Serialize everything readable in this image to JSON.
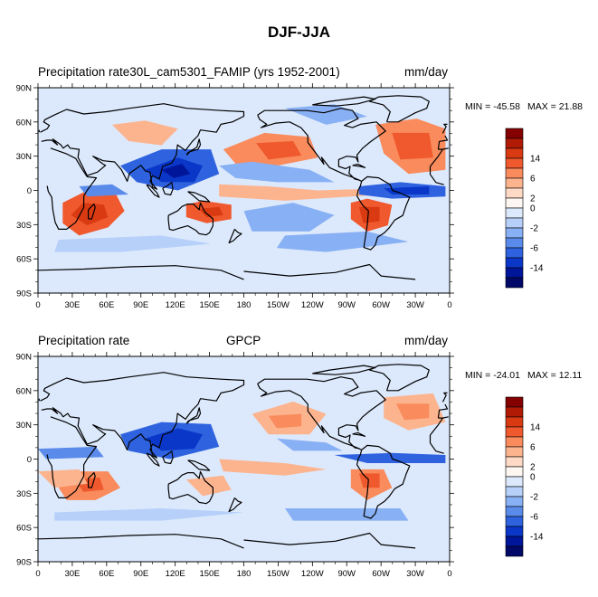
{
  "title": "DJF-JJA",
  "panels": [
    {
      "left_title": "Precipitation rate30L_cam5301_FAMIP (yrs 1952-2001)",
      "center_title": "",
      "units": "mm/day",
      "min_label": "MIN = -45.58",
      "max_label": "MAX =  21.88"
    },
    {
      "left_title": "Precipitation rate",
      "center_title": "GPCP",
      "units": "mm/day",
      "min_label": "MIN = -24.01",
      "max_label": "MAX =  12.11"
    }
  ],
  "lat_labels": [
    "90N",
    "60N",
    "30N",
    "0",
    "30S",
    "60S",
    "90S"
  ],
  "lon_labels": [
    "0",
    "30E",
    "60E",
    "90E",
    "120E",
    "150E",
    "180",
    "150W",
    "120W",
    "90W",
    "60W",
    "30W",
    "0"
  ],
  "colorbar_labels": [
    "14",
    "6",
    "2",
    "0",
    "-2",
    "-6",
    "-14"
  ],
  "colorbar_colors": [
    "#850000",
    "#b11a05",
    "#d93a12",
    "#f0592e",
    "#f98b5c",
    "#fcb48f",
    "#fdd9c6",
    "#fdf6f1",
    "#dce9fc",
    "#b6d0fa",
    "#88b0f4",
    "#5a8bea",
    "#2e62df",
    "#0a37c8",
    "#00169a",
    "#000868"
  ],
  "ocean_color": "#dce9fc",
  "coast_color": "#000000"
}
